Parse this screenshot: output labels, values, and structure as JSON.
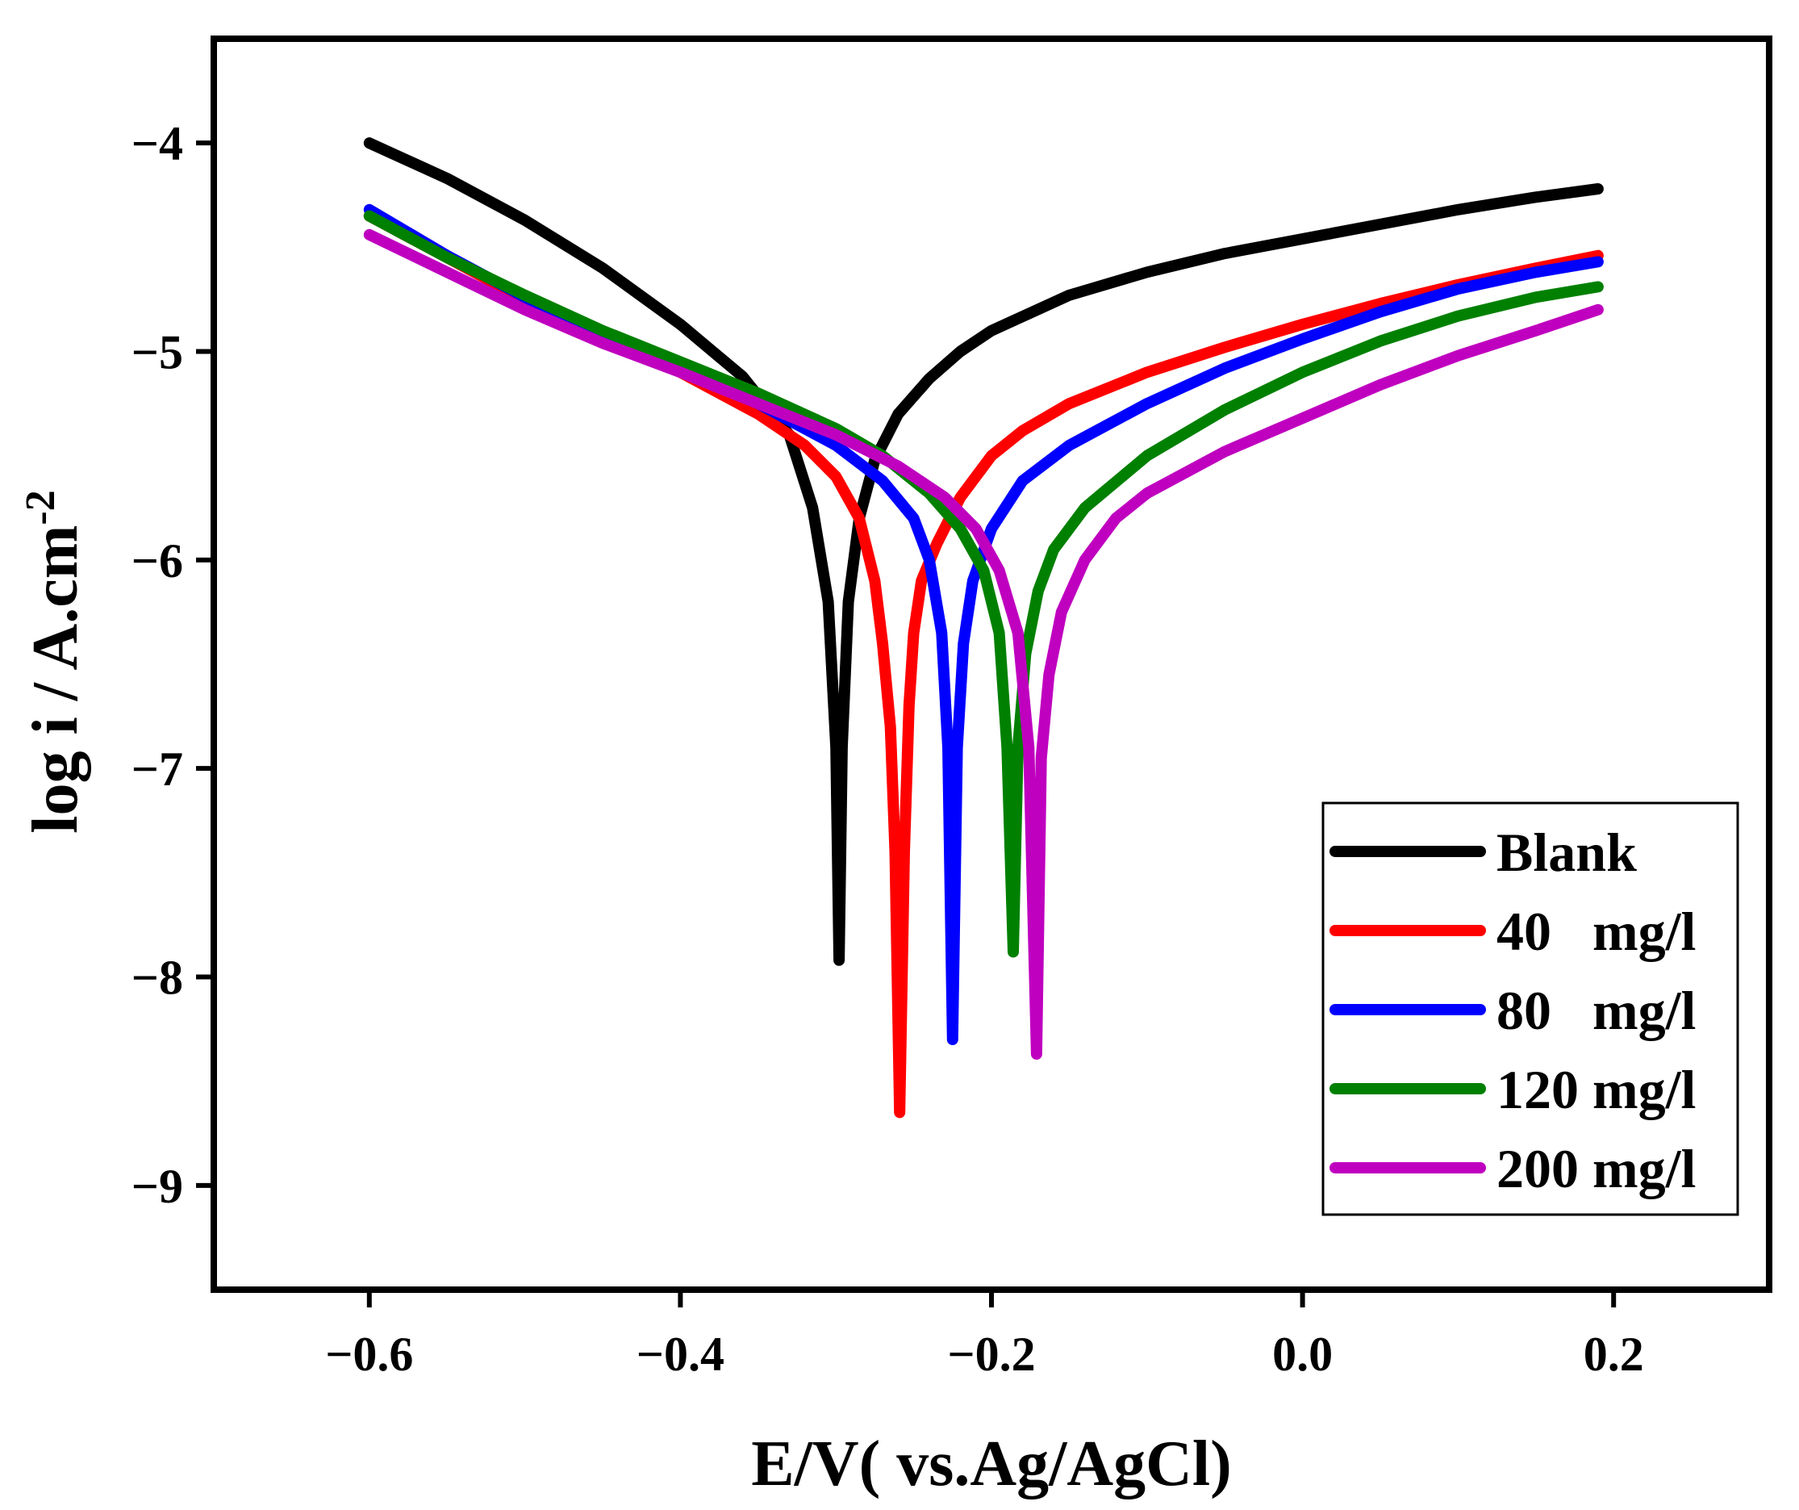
{
  "chart_data": {
    "type": "line",
    "xlabel": "E/V( vs.Ag/AgCl)",
    "ylabel": "log i / A.cm",
    "ylabel_superscript": "-2",
    "xlim": [
      -0.7,
      0.3
    ],
    "ylim": [
      -9.5,
      -3.5
    ],
    "x_ticks": [
      -0.6,
      -0.4,
      -0.2,
      0.0,
      0.2
    ],
    "x_tick_labels": [
      "−0.6",
      "−0.4",
      "−0.2",
      "0.0",
      "0.2"
    ],
    "y_ticks": [
      -4,
      -5,
      -6,
      -7,
      -8,
      -9
    ],
    "y_tick_labels": [
      "−4",
      "−5",
      "−6",
      "−7",
      "−8",
      "−9"
    ],
    "grid": false,
    "legend_position": "bottom-right",
    "series": [
      {
        "name": "Blank",
        "color": "#000000",
        "points": [
          [
            -0.6,
            -4.0
          ],
          [
            -0.55,
            -4.17
          ],
          [
            -0.5,
            -4.37
          ],
          [
            -0.45,
            -4.6
          ],
          [
            -0.4,
            -4.87
          ],
          [
            -0.36,
            -5.12
          ],
          [
            -0.33,
            -5.4
          ],
          [
            -0.315,
            -5.75
          ],
          [
            -0.305,
            -6.2
          ],
          [
            -0.3,
            -6.9
          ],
          [
            -0.298,
            -7.92
          ],
          [
            -0.296,
            -6.9
          ],
          [
            -0.292,
            -6.2
          ],
          [
            -0.285,
            -5.8
          ],
          [
            -0.275,
            -5.52
          ],
          [
            -0.26,
            -5.3
          ],
          [
            -0.24,
            -5.13
          ],
          [
            -0.22,
            -5.0
          ],
          [
            -0.2,
            -4.9
          ],
          [
            -0.15,
            -4.73
          ],
          [
            -0.1,
            -4.62
          ],
          [
            -0.05,
            -4.53
          ],
          [
            0.0,
            -4.46
          ],
          [
            0.05,
            -4.39
          ],
          [
            0.1,
            -4.32
          ],
          [
            0.15,
            -4.26
          ],
          [
            0.19,
            -4.22
          ]
        ]
      },
      {
        "name": "40   mg/l",
        "color": "#ff0000",
        "points": [
          [
            -0.6,
            -4.35
          ],
          [
            -0.55,
            -4.55
          ],
          [
            -0.5,
            -4.75
          ],
          [
            -0.45,
            -4.93
          ],
          [
            -0.4,
            -5.1
          ],
          [
            -0.35,
            -5.3
          ],
          [
            -0.32,
            -5.45
          ],
          [
            -0.3,
            -5.6
          ],
          [
            -0.285,
            -5.8
          ],
          [
            -0.275,
            -6.1
          ],
          [
            -0.27,
            -6.4
          ],
          [
            -0.265,
            -6.8
          ],
          [
            -0.262,
            -7.4
          ],
          [
            -0.259,
            -8.65
          ],
          [
            -0.256,
            -7.4
          ],
          [
            -0.253,
            -6.7
          ],
          [
            -0.25,
            -6.35
          ],
          [
            -0.245,
            -6.1
          ],
          [
            -0.235,
            -5.92
          ],
          [
            -0.22,
            -5.7
          ],
          [
            -0.2,
            -5.5
          ],
          [
            -0.18,
            -5.38
          ],
          [
            -0.15,
            -5.25
          ],
          [
            -0.1,
            -5.1
          ],
          [
            -0.05,
            -4.98
          ],
          [
            0.0,
            -4.87
          ],
          [
            0.05,
            -4.77
          ],
          [
            0.1,
            -4.68
          ],
          [
            0.15,
            -4.6
          ],
          [
            0.19,
            -4.54
          ]
        ]
      },
      {
        "name": "80   mg/l",
        "color": "#0000ff",
        "points": [
          [
            -0.6,
            -4.32
          ],
          [
            -0.55,
            -4.54
          ],
          [
            -0.5,
            -4.74
          ],
          [
            -0.45,
            -4.92
          ],
          [
            -0.4,
            -5.08
          ],
          [
            -0.35,
            -5.25
          ],
          [
            -0.3,
            -5.45
          ],
          [
            -0.27,
            -5.62
          ],
          [
            -0.25,
            -5.8
          ],
          [
            -0.24,
            -6.0
          ],
          [
            -0.232,
            -6.35
          ],
          [
            -0.228,
            -6.9
          ],
          [
            -0.225,
            -8.3
          ],
          [
            -0.222,
            -6.9
          ],
          [
            -0.218,
            -6.4
          ],
          [
            -0.212,
            -6.1
          ],
          [
            -0.2,
            -5.85
          ],
          [
            -0.18,
            -5.62
          ],
          [
            -0.15,
            -5.45
          ],
          [
            -0.1,
            -5.25
          ],
          [
            -0.05,
            -5.08
          ],
          [
            0.0,
            -4.94
          ],
          [
            0.05,
            -4.81
          ],
          [
            0.1,
            -4.7
          ],
          [
            0.15,
            -4.62
          ],
          [
            0.19,
            -4.57
          ]
        ]
      },
      {
        "name": "120 mg/l",
        "color": "#008000",
        "points": [
          [
            -0.6,
            -4.35
          ],
          [
            -0.55,
            -4.55
          ],
          [
            -0.5,
            -4.73
          ],
          [
            -0.45,
            -4.9
          ],
          [
            -0.4,
            -5.05
          ],
          [
            -0.35,
            -5.2
          ],
          [
            -0.3,
            -5.37
          ],
          [
            -0.27,
            -5.5
          ],
          [
            -0.24,
            -5.68
          ],
          [
            -0.22,
            -5.85
          ],
          [
            -0.205,
            -6.05
          ],
          [
            -0.195,
            -6.35
          ],
          [
            -0.19,
            -6.9
          ],
          [
            -0.186,
            -7.88
          ],
          [
            -0.183,
            -6.9
          ],
          [
            -0.178,
            -6.45
          ],
          [
            -0.17,
            -6.15
          ],
          [
            -0.16,
            -5.95
          ],
          [
            -0.14,
            -5.75
          ],
          [
            -0.1,
            -5.5
          ],
          [
            -0.05,
            -5.28
          ],
          [
            0.0,
            -5.1
          ],
          [
            0.05,
            -4.95
          ],
          [
            0.1,
            -4.83
          ],
          [
            0.15,
            -4.74
          ],
          [
            0.19,
            -4.69
          ]
        ]
      },
      {
        "name": "200 mg/l",
        "color": "#bf00bf",
        "points": [
          [
            -0.6,
            -4.44
          ],
          [
            -0.55,
            -4.62
          ],
          [
            -0.5,
            -4.8
          ],
          [
            -0.45,
            -4.96
          ],
          [
            -0.4,
            -5.1
          ],
          [
            -0.35,
            -5.25
          ],
          [
            -0.3,
            -5.4
          ],
          [
            -0.26,
            -5.55
          ],
          [
            -0.23,
            -5.7
          ],
          [
            -0.21,
            -5.85
          ],
          [
            -0.195,
            -6.05
          ],
          [
            -0.183,
            -6.35
          ],
          [
            -0.176,
            -6.9
          ],
          [
            -0.171,
            -8.37
          ],
          [
            -0.168,
            -6.95
          ],
          [
            -0.163,
            -6.55
          ],
          [
            -0.155,
            -6.25
          ],
          [
            -0.14,
            -6.0
          ],
          [
            -0.12,
            -5.8
          ],
          [
            -0.1,
            -5.68
          ],
          [
            -0.05,
            -5.48
          ],
          [
            0.0,
            -5.32
          ],
          [
            0.05,
            -5.16
          ],
          [
            0.1,
            -5.02
          ],
          [
            0.15,
            -4.9
          ],
          [
            0.19,
            -4.8
          ]
        ]
      }
    ]
  }
}
